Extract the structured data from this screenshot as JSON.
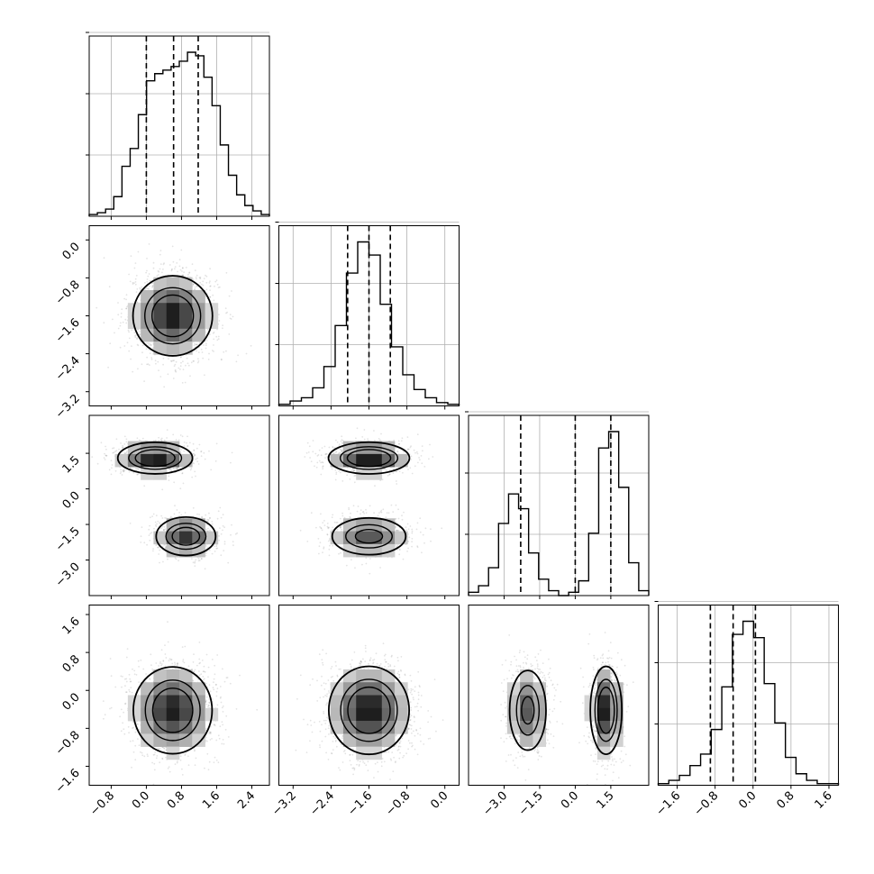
{
  "chart_data": {
    "type": "corner",
    "title": "",
    "n_params": 4,
    "grid": true,
    "quantile_lines": "dashed",
    "params": [
      {
        "xlim": [
          -1.3,
          2.8
        ],
        "ticks": [
          -0.8,
          0.0,
          0.8,
          1.6,
          2.4
        ],
        "tick_labels": [
          "−0.8",
          "0.0",
          "0.8",
          "1.6",
          "2.4"
        ],
        "quantiles": [
          0.0,
          0.62,
          1.18
        ],
        "hist": [
          1,
          2,
          4,
          11,
          28,
          38,
          57,
          76,
          80,
          82,
          84,
          87,
          92,
          90,
          78,
          62,
          40,
          23,
          12,
          6,
          3,
          1
        ],
        "modes": [
          {
            "mu": 0.75,
            "sigma": 0.45,
            "weight": 1.0
          }
        ]
      },
      {
        "lim": [
          -3.5,
          0.3
        ],
        "ticks": [
          -3.2,
          -2.4,
          -1.6,
          -0.8,
          0.0
        ],
        "tick_labels": [
          "−3.2",
          "−2.4",
          "−1.6",
          "−0.8",
          "0.0"
        ],
        "quantiles": [
          -2.05,
          -1.6,
          -1.15
        ],
        "hist": [
          1,
          3,
          5,
          11,
          24,
          49,
          81,
          100,
          92,
          62,
          36,
          19,
          10,
          5,
          2,
          1
        ],
        "modes": [
          {
            "mu": -1.6,
            "sigma": 0.42,
            "weight": 1.0
          }
        ]
      },
      {
        "lim": [
          -4.5,
          3.1
        ],
        "ticks": [
          -3.0,
          -1.5,
          0.0,
          1.5
        ],
        "tick_labels": [
          "−3.0",
          "−1.5",
          "0.0",
          "1.5"
        ],
        "quantiles": [
          -2.3,
          0.0,
          1.5
        ],
        "hist": [
          2,
          6,
          17,
          44,
          62,
          53,
          26,
          10,
          3,
          0,
          2,
          9,
          38,
          90,
          100,
          66,
          20,
          3
        ],
        "modes": [
          {
            "mu": -2.0,
            "sigma": 0.42,
            "weight": 0.47
          },
          {
            "mu": 1.3,
            "sigma": 0.33,
            "weight": 0.53
          }
        ]
      },
      {
        "lim": [
          -2.0,
          1.8
        ],
        "ticks": [
          -1.6,
          -0.8,
          0.0,
          0.8,
          1.6
        ],
        "tick_labels": [
          "−1.6",
          "−0.8",
          "0.0",
          "0.8",
          "1.6"
        ],
        "quantiles": [
          -0.9,
          -0.42,
          0.05
        ],
        "hist": [
          1,
          3,
          6,
          12,
          19,
          34,
          60,
          92,
          100,
          90,
          62,
          38,
          17,
          7,
          3,
          1,
          1
        ],
        "modes": [
          {
            "mu": -0.42,
            "sigma": 0.46,
            "weight": 1.0
          }
        ]
      }
    ],
    "pairs": [
      {
        "row": 1,
        "col": 0,
        "clusters": [
          {
            "mx": 0.6,
            "my": -1.6,
            "sx": 0.45,
            "sy": 0.42,
            "w": 1.0
          }
        ]
      },
      {
        "row": 2,
        "col": 0,
        "clusters": [
          {
            "mx": 0.2,
            "my": 1.3,
            "sx": 0.42,
            "sy": 0.33,
            "w": 0.53
          },
          {
            "mx": 0.9,
            "my": -2.0,
            "sx": 0.35,
            "sy": 0.42,
            "w": 0.47
          }
        ]
      },
      {
        "row": 2,
        "col": 1,
        "clusters": [
          {
            "mx": -1.6,
            "my": 1.3,
            "sx": 0.42,
            "sy": 0.33,
            "w": 0.53
          },
          {
            "mx": -1.6,
            "my": -2.0,
            "sx": 0.42,
            "sy": 0.42,
            "w": 0.47
          }
        ]
      },
      {
        "row": 3,
        "col": 0,
        "clusters": [
          {
            "mx": 0.6,
            "my": -0.42,
            "sx": 0.45,
            "sy": 0.46,
            "w": 1.0
          }
        ]
      },
      {
        "row": 3,
        "col": 1,
        "clusters": [
          {
            "mx": -1.6,
            "my": -0.42,
            "sx": 0.42,
            "sy": 0.46,
            "w": 1.0
          }
        ]
      },
      {
        "row": 3,
        "col": 2,
        "clusters": [
          {
            "mx": -2.0,
            "my": -0.42,
            "sx": 0.42,
            "sy": 0.46,
            "w": 0.47
          },
          {
            "mx": 1.3,
            "my": -0.42,
            "sx": 0.33,
            "sy": 0.46,
            "w": 0.53
          }
        ]
      }
    ]
  }
}
